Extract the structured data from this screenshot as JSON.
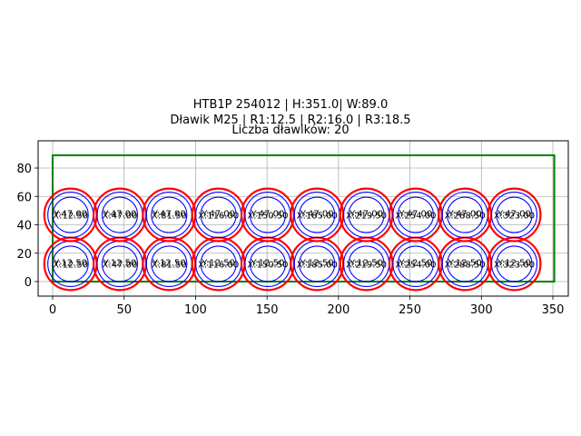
{
  "titles": {
    "line1": "HTB1P 254012 | H:351.0| W:89.0",
    "line2": "Dławik M25 | R1:12.5 | R2:16.0 | R3:18.5",
    "line3": "Liczba dławików: 20"
  },
  "chart_data": {
    "type": "scatter",
    "title": "HTB1P 254012 | H:351.0| W:89.0 / Dławik M25 | R1:12.5 | R2:16.0 | R3:18.5 / Liczba dławików: 20",
    "xlabel": "",
    "ylabel": "",
    "xlim": [
      -10,
      361
    ],
    "ylim": [
      -10,
      99
    ],
    "grid": true,
    "xticks": [
      0,
      50,
      100,
      150,
      200,
      250,
      300,
      350
    ],
    "yticks": [
      0,
      20,
      40,
      60,
      80
    ],
    "rectangle": {
      "x": 0,
      "y": 0,
      "width": 351.0,
      "height": 89.0,
      "color": "#008000"
    },
    "radii": {
      "R1": 12.5,
      "R2": 16.0,
      "R3": 18.5
    },
    "colors": {
      "R1": "#0000ff",
      "R2": "#0000ff",
      "R3": "#ff0000"
    },
    "count": 20,
    "centers_x": [
      12.5,
      47.0,
      81.5,
      116.0,
      150.5,
      185.0,
      219.5,
      254.0,
      288.5,
      323.0
    ],
    "centers_y": [
      12.5,
      47.0
    ],
    "points": [
      {
        "x": 12.5,
        "y": 12.5
      },
      {
        "x": 47.0,
        "y": 12.5
      },
      {
        "x": 81.5,
        "y": 12.5
      },
      {
        "x": 116.0,
        "y": 12.5
      },
      {
        "x": 150.5,
        "y": 12.5
      },
      {
        "x": 185.0,
        "y": 12.5
      },
      {
        "x": 219.5,
        "y": 12.5
      },
      {
        "x": 254.0,
        "y": 12.5
      },
      {
        "x": 288.5,
        "y": 12.5
      },
      {
        "x": 323.0,
        "y": 12.5
      },
      {
        "x": 12.5,
        "y": 47.0
      },
      {
        "x": 47.0,
        "y": 47.0
      },
      {
        "x": 81.5,
        "y": 47.0
      },
      {
        "x": 116.0,
        "y": 47.0
      },
      {
        "x": 150.5,
        "y": 47.0
      },
      {
        "x": 185.0,
        "y": 47.0
      },
      {
        "x": 219.5,
        "y": 47.0
      },
      {
        "x": 254.0,
        "y": 47.0
      },
      {
        "x": 288.5,
        "y": 47.0
      },
      {
        "x": 323.0,
        "y": 47.0
      }
    ]
  }
}
